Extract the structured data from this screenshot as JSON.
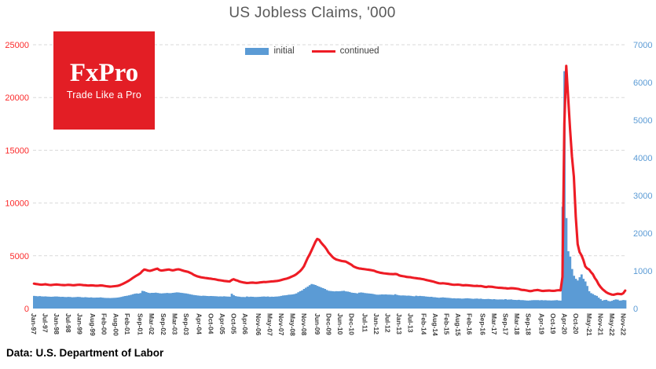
{
  "source_note": "Data: U.S. Department of Labor",
  "logo": {
    "name": "FxPro",
    "tagline": "Trade Like a Pro",
    "bg_color": "#e31e25",
    "text_color": "#ffffff"
  },
  "legend": {
    "items": [
      {
        "label": "initial",
        "type": "bar",
        "color": "#5b9bd5"
      },
      {
        "label": "continued",
        "type": "line",
        "color": "#ee1c25"
      }
    ]
  },
  "chart_data": {
    "type": "combo",
    "title": "US Jobless Claims, '000",
    "grid": "horizontal-dashed",
    "gridline_color": "#d9d9d9",
    "legend_position": "top-center",
    "x_start": "Jan-1997",
    "x_end": "Dec-2022",
    "frequency": "monthly",
    "left_axis": {
      "series": "continued",
      "min": 0,
      "max": 25000,
      "ticks": [
        0,
        5000,
        10000,
        15000,
        20000,
        25000
      ],
      "label_color": "#fb2a2a"
    },
    "right_axis": {
      "series": "initial",
      "min": 0,
      "max": 7000,
      "ticks": [
        0,
        1000,
        2000,
        3000,
        4000,
        5000,
        6000,
        7000
      ],
      "label_color": "#5b9bd5"
    },
    "x_labels": [
      "Jan-97",
      "Jul-97",
      "Jan-98",
      "Jul-98",
      "Jan-99",
      "Aug-99",
      "Feb-00",
      "Aug-00",
      "Feb-01",
      "Sep-01",
      "Mar-02",
      "Sep-02",
      "Mar-03",
      "Sep-03",
      "Apr-04",
      "Oct-04",
      "Apr-05",
      "Oct-05",
      "Apr-06",
      "Nov-06",
      "May-07",
      "Nov-07",
      "May-08",
      "Nov-08",
      "Jun-09",
      "Dec-09",
      "Jun-10",
      "Dec-10",
      "Jul-11",
      "Jan-12",
      "Jul-12",
      "Jan-13",
      "Jul-13",
      "Feb-14",
      "Aug-14",
      "Feb-15",
      "Aug-15",
      "Feb-16",
      "Sep-16",
      "Mar-17",
      "Sep-17",
      "Mar-18",
      "Sep-18",
      "Apr-19",
      "Oct-19",
      "Apr-20",
      "Oct-20",
      "May-21",
      "Nov-21",
      "May-22",
      "Nov-22"
    ],
    "x_label_month_indices": [
      0,
      6,
      12,
      18,
      24,
      31,
      37,
      43,
      49,
      56,
      62,
      68,
      74,
      80,
      87,
      93,
      99,
      105,
      111,
      118,
      124,
      130,
      136,
      142,
      149,
      155,
      161,
      167,
      174,
      180,
      186,
      192,
      198,
      205,
      211,
      217,
      223,
      229,
      236,
      242,
      248,
      254,
      260,
      267,
      273,
      279,
      285,
      292,
      298,
      304,
      310
    ],
    "series": [
      {
        "name": "initial",
        "type": "bar",
        "axis": "right",
        "color": "#5b9bd5",
        "values": [
          335,
          330,
          326,
          330,
          324,
          320,
          322,
          318,
          314,
          312,
          316,
          321,
          320,
          315,
          310,
          312,
          308,
          304,
          310,
          306,
          300,
          302,
          305,
          310,
          306,
          300,
          298,
          301,
          296,
          292,
          296,
          290,
          288,
          291,
          293,
          296,
          290,
          285,
          282,
          280,
          278,
          281,
          283,
          286,
          291,
          300,
          310,
          322,
          332,
          342,
          352,
          365,
          380,
          392,
          400,
          396,
          412,
          468,
          458,
          438,
          420,
          412,
          416,
          418,
          421,
          415,
          406,
          400,
          406,
          410,
          415,
          410,
          410,
          416,
          421,
          430,
          426,
          420,
          415,
          406,
          400,
          390,
          380,
          370,
          360,
          354,
          346,
          340,
          336,
          340,
          338,
          334,
          330,
          332,
          330,
          328,
          325,
          321,
          322,
          320,
          326,
          320,
          318,
          316,
          392,
          358,
          330,
          320,
          315,
          306,
          308,
          305,
          320,
          310,
          315,
          312,
          308,
          306,
          310,
          313,
          318,
          320,
          316,
          320,
          310,
          316,
          312,
          318,
          321,
          326,
          336,
          346,
          352,
          356,
          366,
          371,
          376,
          386,
          401,
          431,
          462,
          481,
          521,
          551,
          582,
          621,
          650,
          640,
          626,
          601,
          581,
          561,
          541,
          521,
          491,
          471,
          466,
          461,
          456,
          461,
          458,
          461,
          466,
          471,
          456,
          451,
          441,
          421,
          416,
          411,
          401,
          421,
          426,
          421,
          411,
          406,
          401,
          396,
          391,
          381,
          371,
          366,
          371,
          376,
          373,
          376,
          371,
          369,
          366,
          363,
          381,
          361,
          351,
          346,
          349,
          346,
          341,
          343,
          339,
          331,
          326,
          341,
          331,
          336,
          331,
          329,
          321,
          316,
          311,
          313,
          301,
          299,
          291,
          286,
          291,
          296,
          291,
          286,
          283,
          279,
          271,
          273,
          269,
          271,
          269,
          263,
          266,
          271,
          273,
          269,
          263,
          259,
          263,
          266,
          259,
          263,
          253,
          251,
          253,
          256,
          249,
          245,
          251,
          243,
          239,
          243,
          241,
          239,
          251,
          236,
          239,
          241,
          233,
          229,
          227,
          231,
          225,
          223,
          219,
          213,
          211,
          215,
          221,
          223,
          223,
          225,
          219,
          223,
          219,
          221,
          215,
          217,
          213,
          215,
          219,
          223,
          214,
          212,
          2700,
          6300,
          2400,
          1520,
          1380,
          1050,
          870,
          790,
          745,
          830,
          905,
          790,
          720,
          600,
          460,
          410,
          385,
          355,
          335,
          290,
          250,
          212,
          226,
          232,
          202,
          192,
          206,
          226,
          241,
          236,
          212,
          216,
          226,
          221
        ]
      },
      {
        "name": "continued",
        "type": "line",
        "axis": "left",
        "color": "#ee1c25",
        "values": [
          2360,
          2330,
          2305,
          2280,
          2260,
          2280,
          2300,
          2270,
          2240,
          2230,
          2250,
          2270,
          2280,
          2260,
          2240,
          2230,
          2220,
          2232,
          2250,
          2240,
          2220,
          2210,
          2230,
          2250,
          2260,
          2240,
          2220,
          2210,
          2192,
          2180,
          2200,
          2190,
          2170,
          2160,
          2172,
          2190,
          2180,
          2150,
          2120,
          2100,
          2080,
          2092,
          2110,
          2130,
          2152,
          2200,
          2280,
          2360,
          2450,
          2550,
          2650,
          2770,
          2900,
          3020,
          3130,
          3230,
          3350,
          3550,
          3700,
          3660,
          3600,
          3572,
          3620,
          3680,
          3740,
          3780,
          3650,
          3600,
          3622,
          3650,
          3680,
          3700,
          3650,
          3620,
          3652,
          3700,
          3720,
          3680,
          3620,
          3560,
          3520,
          3480,
          3400,
          3320,
          3200,
          3120,
          3050,
          3000,
          2960,
          2930,
          2900,
          2880,
          2850,
          2830,
          2800,
          2780,
          2740,
          2700,
          2680,
          2650,
          2620,
          2600,
          2580,
          2572,
          2700,
          2780,
          2700,
          2650,
          2570,
          2520,
          2480,
          2450,
          2420,
          2432,
          2450,
          2460,
          2440,
          2430,
          2450,
          2480,
          2500,
          2520,
          2510,
          2530,
          2550,
          2570,
          2580,
          2600,
          2620,
          2650,
          2700,
          2750,
          2800,
          2840,
          2900,
          2980,
          3060,
          3140,
          3250,
          3400,
          3550,
          3750,
          4000,
          4400,
          4800,
          5120,
          5500,
          5900,
          6300,
          6600,
          6520,
          6260,
          6050,
          5850,
          5600,
          5300,
          5100,
          4900,
          4750,
          4650,
          4600,
          4550,
          4500,
          4480,
          4450,
          4350,
          4250,
          4150,
          4000,
          3920,
          3850,
          3800,
          3780,
          3750,
          3730,
          3700,
          3680,
          3650,
          3620,
          3580,
          3500,
          3450,
          3400,
          3370,
          3340,
          3320,
          3300,
          3280,
          3270,
          3260,
          3280,
          3250,
          3150,
          3100,
          3070,
          3040,
          3000,
          2980,
          2970,
          2930,
          2900,
          2880,
          2850,
          2830,
          2800,
          2770,
          2720,
          2680,
          2640,
          2600,
          2560,
          2500,
          2450,
          2400,
          2380,
          2400,
          2380,
          2360,
          2340,
          2300,
          2270,
          2250,
          2260,
          2270,
          2250,
          2220,
          2200,
          2220,
          2210,
          2190,
          2170,
          2150,
          2140,
          2150,
          2130,
          2140,
          2100,
          2060,
          2040,
          2080,
          2070,
          2060,
          2030,
          2000,
          1980,
          1970,
          1960,
          1940,
          1930,
          1900,
          1910,
          1930,
          1920,
          1900,
          1880,
          1850,
          1790,
          1760,
          1750,
          1720,
          1680,
          1650,
          1670,
          1720,
          1740,
          1760,
          1720,
          1680,
          1670,
          1690,
          1700,
          1710,
          1690,
          1680,
          1690,
          1720,
          1740,
          1720,
          3000,
          17500,
          23000,
          20000,
          17000,
          14400,
          12500,
          8700,
          6100,
          5350,
          5050,
          4600,
          4000,
          3800,
          3700,
          3450,
          3250,
          2900,
          2650,
          2300,
          2050,
          1850,
          1700,
          1550,
          1450,
          1380,
          1320,
          1310,
          1360,
          1400,
          1380,
          1360,
          1450,
          1700
        ]
      }
    ]
  }
}
